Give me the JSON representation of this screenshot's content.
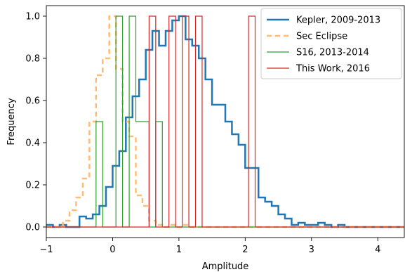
{
  "chart_data": {
    "type": "line",
    "xlabel": "Amplitude",
    "ylabel": "Frequency",
    "xlim": [
      -1,
      4.4
    ],
    "ylim": [
      -0.05,
      1.05
    ],
    "xticks": [
      -1,
      0,
      1,
      2,
      3,
      4
    ],
    "yticks": [
      0.0,
      0.2,
      0.4,
      0.6,
      0.8,
      1.0
    ],
    "xtick_labels": [
      "−1",
      "0",
      "1",
      "2",
      "3",
      "4"
    ],
    "ytick_labels": [
      "0.0",
      "0.2",
      "0.4",
      "0.6",
      "0.8",
      "1.0"
    ],
    "grid": false,
    "legend_position": "top-right",
    "series": [
      {
        "name": "Kepler, 2009-2013",
        "style": "step",
        "color": "#1f77b4",
        "linewidth": 2.5,
        "dash": "",
        "x": [
          -1.0,
          -0.9,
          -0.8,
          -0.7,
          -0.6,
          -0.5,
          -0.4,
          -0.3,
          -0.2,
          -0.1,
          0.0,
          0.1,
          0.2,
          0.3,
          0.4,
          0.5,
          0.6,
          0.7,
          0.8,
          0.9,
          1.0,
          1.1,
          1.2,
          1.3,
          1.4,
          1.5,
          1.6,
          1.7,
          1.8,
          1.9,
          2.0,
          2.1,
          2.2,
          2.3,
          2.4,
          2.5,
          2.6,
          2.7,
          2.8,
          2.9,
          3.0,
          3.1,
          3.2,
          3.3,
          3.4,
          3.5,
          3.6,
          4.4
        ],
        "y": [
          0.01,
          0.0,
          0.01,
          0.0,
          0.0,
          0.05,
          0.04,
          0.06,
          0.1,
          0.19,
          0.29,
          0.36,
          0.52,
          0.62,
          0.7,
          0.84,
          0.93,
          0.86,
          0.93,
          0.98,
          1.0,
          0.89,
          0.86,
          0.8,
          0.7,
          0.58,
          0.58,
          0.5,
          0.44,
          0.39,
          0.28,
          0.28,
          0.14,
          0.12,
          0.1,
          0.06,
          0.04,
          0.01,
          0.02,
          0.01,
          0.01,
          0.02,
          0.01,
          0.0,
          0.01,
          0.0,
          0.0,
          0.0
        ]
      },
      {
        "name": "Sec Eclipse",
        "style": "step",
        "color": "#ffbb78",
        "linewidth": 2.5,
        "dash": "7,5",
        "x": [
          -1.0,
          -0.95,
          -0.85,
          -0.75,
          -0.65,
          -0.55,
          -0.45,
          -0.35,
          -0.25,
          -0.15,
          -0.05,
          0.05,
          0.15,
          0.25,
          0.35,
          0.45,
          0.55,
          0.65,
          0.75,
          0.85,
          0.95,
          1.05,
          1.15,
          1.25,
          1.35,
          4.4
        ],
        "y": [
          0.0,
          0.0,
          0.0,
          0.03,
          0.08,
          0.14,
          0.23,
          0.5,
          0.72,
          0.8,
          1.0,
          0.75,
          0.5,
          0.43,
          0.15,
          0.1,
          0.03,
          0.01,
          0.0,
          0.01,
          0.0,
          0.01,
          0.0,
          0.0,
          0.0,
          0.0
        ]
      },
      {
        "name": "S16, 2013-2014",
        "style": "step",
        "color": "#2ca02c",
        "linewidth": 1.2,
        "dash": "",
        "x": [
          -1.0,
          -0.25,
          -0.15,
          -0.05,
          0.05,
          0.15,
          0.25,
          0.35,
          0.45,
          0.55,
          0.65,
          0.75,
          4.4
        ],
        "y": [
          0.0,
          0.5,
          0.0,
          0.0,
          1.0,
          0.0,
          1.0,
          0.5,
          0.5,
          0.0,
          0.5,
          0.0,
          0.0
        ]
      },
      {
        "name": "This Work, 2016",
        "style": "step",
        "color": "#d62728",
        "linewidth": 1.2,
        "dash": "",
        "x": [
          -1.0,
          0.55,
          0.65,
          0.75,
          0.85,
          0.95,
          1.05,
          1.15,
          1.25,
          1.35,
          1.45,
          2.05,
          2.15,
          4.4
        ],
        "y": [
          0.0,
          1.0,
          0.0,
          0.0,
          1.0,
          0.0,
          1.0,
          0.0,
          1.0,
          0.0,
          0.0,
          1.0,
          0.0,
          0.0
        ]
      }
    ]
  }
}
